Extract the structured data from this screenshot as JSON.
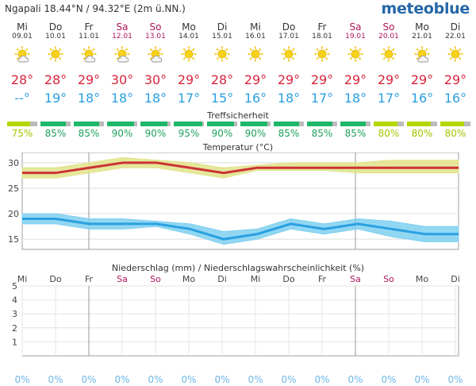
{
  "header": {
    "location": "Ngapali  18.44°N / 94.32°E (2m ü.NN.)",
    "brand": "meteoblue"
  },
  "days": [
    {
      "name": "Mi",
      "date": "09.01",
      "weekend": false,
      "icon": "sun-cloud-icon",
      "tmax": "28°",
      "tmin": "--°"
    },
    {
      "name": "Do",
      "date": "10.01",
      "weekend": false,
      "icon": "sun-icon",
      "tmax": "28°",
      "tmin": "19°"
    },
    {
      "name": "Fr",
      "date": "11.01",
      "weekend": false,
      "icon": "sun-cloud-icon",
      "tmax": "29°",
      "tmin": "18°"
    },
    {
      "name": "Sa",
      "date": "12.01",
      "weekend": true,
      "icon": "sun-cloud-icon",
      "tmax": "30°",
      "tmin": "18°"
    },
    {
      "name": "So",
      "date": "13.01",
      "weekend": true,
      "icon": "sun-cloud-icon",
      "tmax": "30°",
      "tmin": "18°"
    },
    {
      "name": "Mo",
      "date": "14.01",
      "weekend": false,
      "icon": "sun-icon",
      "tmax": "29°",
      "tmin": "17°"
    },
    {
      "name": "Di",
      "date": "15.01",
      "weekend": false,
      "icon": "sun-icon",
      "tmax": "28°",
      "tmin": "15°"
    },
    {
      "name": "Mi",
      "date": "16.01",
      "weekend": false,
      "icon": "sun-icon",
      "tmax": "29°",
      "tmin": "16°"
    },
    {
      "name": "Do",
      "date": "17.01",
      "weekend": false,
      "icon": "sun-icon",
      "tmax": "29°",
      "tmin": "18°"
    },
    {
      "name": "Fr",
      "date": "18.01",
      "weekend": false,
      "icon": "sun-icon",
      "tmax": "29°",
      "tmin": "17°"
    },
    {
      "name": "Sa",
      "date": "19.01",
      "weekend": true,
      "icon": "sun-icon",
      "tmax": "29°",
      "tmin": "18°"
    },
    {
      "name": "So",
      "date": "20.01",
      "weekend": true,
      "icon": "sun-icon",
      "tmax": "29°",
      "tmin": "17°"
    },
    {
      "name": "Mo",
      "date": "21.01",
      "weekend": false,
      "icon": "sun-cloud-icon",
      "tmax": "29°",
      "tmin": "16°"
    },
    {
      "name": "Di",
      "date": "22.01",
      "weekend": false,
      "icon": "sun-icon",
      "tmax": "29°",
      "tmin": "16°"
    }
  ],
  "confidence": {
    "title": "Treffsicherheit",
    "values": [
      75,
      85,
      85,
      90,
      90,
      95,
      90,
      90,
      85,
      85,
      85,
      80,
      80,
      80
    ],
    "labels": [
      "75%",
      "85%",
      "85%",
      "90%",
      "90%",
      "95%",
      "90%",
      "90%",
      "85%",
      "85%",
      "85%",
      "80%",
      "80%",
      "80%"
    ],
    "colors": {
      "high": "#1fb86a",
      "medium": "#b5d600",
      "background": "#bbbbbb",
      "text_high": "#1fa05c",
      "text_medium": "#a6c400"
    }
  },
  "chart_data": [
    {
      "type": "area",
      "title": "Temperatur (°C)",
      "x": [
        "09.01",
        "10.01",
        "11.01",
        "12.01",
        "13.01",
        "14.01",
        "15.01",
        "16.01",
        "17.01",
        "18.01",
        "19.01",
        "20.01",
        "21.01",
        "22.01"
      ],
      "ylim": [
        13,
        32
      ],
      "yticks": [
        15,
        20,
        25,
        30
      ],
      "grid": true,
      "series": [
        {
          "key": "max",
          "values": [
            28,
            28,
            29,
            30,
            30,
            29,
            28,
            29,
            29,
            29,
            29,
            29,
            29,
            29
          ],
          "band": [
            [
              27,
              29
            ],
            [
              27,
              29
            ],
            [
              28,
              30
            ],
            [
              29,
              31
            ],
            [
              29,
              30.5
            ],
            [
              28,
              30
            ],
            [
              27,
              29
            ],
            [
              28.5,
              29.5
            ],
            [
              28.5,
              30
            ],
            [
              28.5,
              30
            ],
            [
              28,
              30
            ],
            [
              28,
              30.5
            ],
            [
              28,
              30.5
            ],
            [
              28,
              30.5
            ]
          ],
          "color": "#cc3333",
          "band_color": "#e2e38a"
        },
        {
          "key": "min",
          "values": [
            19,
            19,
            18,
            18,
            18,
            17,
            15,
            16,
            18,
            17,
            18,
            17,
            16,
            16
          ],
          "band": [
            [
              18,
              20
            ],
            [
              18,
              20
            ],
            [
              17,
              19
            ],
            [
              17,
              19
            ],
            [
              17.5,
              18.5
            ],
            [
              16,
              18
            ],
            [
              14,
              16.5
            ],
            [
              15,
              17
            ],
            [
              17,
              19
            ],
            [
              16,
              18
            ],
            [
              17,
              19
            ],
            [
              15.5,
              18.5
            ],
            [
              14.5,
              17.5
            ],
            [
              14.5,
              17.5
            ]
          ],
          "color": "#2aa0e0",
          "band_color": "#7fd0f0"
        }
      ],
      "colors": {
        "grid": "#dddddd",
        "axis": "#888888"
      }
    },
    {
      "type": "bar",
      "title": "Niederschlag (mm) / Niederschlagswahrscheinlichkeit (%)",
      "categories": [
        "Mi",
        "Do",
        "Fr",
        "Sa",
        "So",
        "Mo",
        "Di",
        "Mi",
        "Do",
        "Fr",
        "Sa",
        "So",
        "Mo",
        "Di"
      ],
      "weekend": [
        false,
        false,
        false,
        true,
        true,
        false,
        false,
        false,
        false,
        false,
        true,
        true,
        false,
        false
      ],
      "values": [
        0,
        0,
        0,
        0,
        0,
        0,
        0,
        0,
        0,
        0,
        0,
        0,
        0,
        0
      ],
      "ylim": [
        0,
        5
      ],
      "yticks": [
        1,
        2,
        3,
        4,
        5
      ],
      "probability_labels": [
        "0%",
        "0%",
        "0%",
        "0%",
        "0%",
        "0%",
        "0%",
        "0%",
        "0%",
        "0%",
        "0%",
        "0%",
        "0%",
        "0%"
      ],
      "grid": true,
      "colors": {
        "grid": "#e4e4e4",
        "axis": "#888888",
        "weekend": "#b0155a",
        "probability": "#6ab8e8"
      }
    }
  ]
}
